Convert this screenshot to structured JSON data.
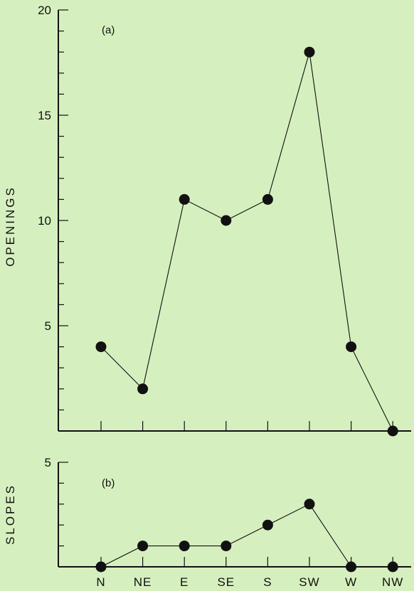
{
  "chart_data": [
    {
      "type": "line",
      "panel_label": "(a)",
      "ylabel": "OPENINGS",
      "xlabel": "",
      "categories": [
        "N",
        "NE",
        "E",
        "SE",
        "S",
        "SW",
        "W",
        "NW"
      ],
      "values": [
        4,
        2,
        11,
        10,
        11,
        18,
        4,
        0
      ],
      "ylim": [
        0,
        20
      ],
      "yticks_labeled": [
        5,
        10,
        15,
        20
      ],
      "yminor_step": 1,
      "grid": false
    },
    {
      "type": "line",
      "panel_label": "(b)",
      "ylabel": "SLOPES",
      "xlabel": "",
      "categories": [
        "N",
        "NE",
        "E",
        "SE",
        "S",
        "SW",
        "W",
        "NW"
      ],
      "values": [
        0,
        1,
        1,
        1,
        2,
        3,
        0,
        0
      ],
      "ylim": [
        0,
        5
      ],
      "yticks_labeled": [
        5
      ],
      "yminor_step": 1,
      "grid": false
    }
  ]
}
